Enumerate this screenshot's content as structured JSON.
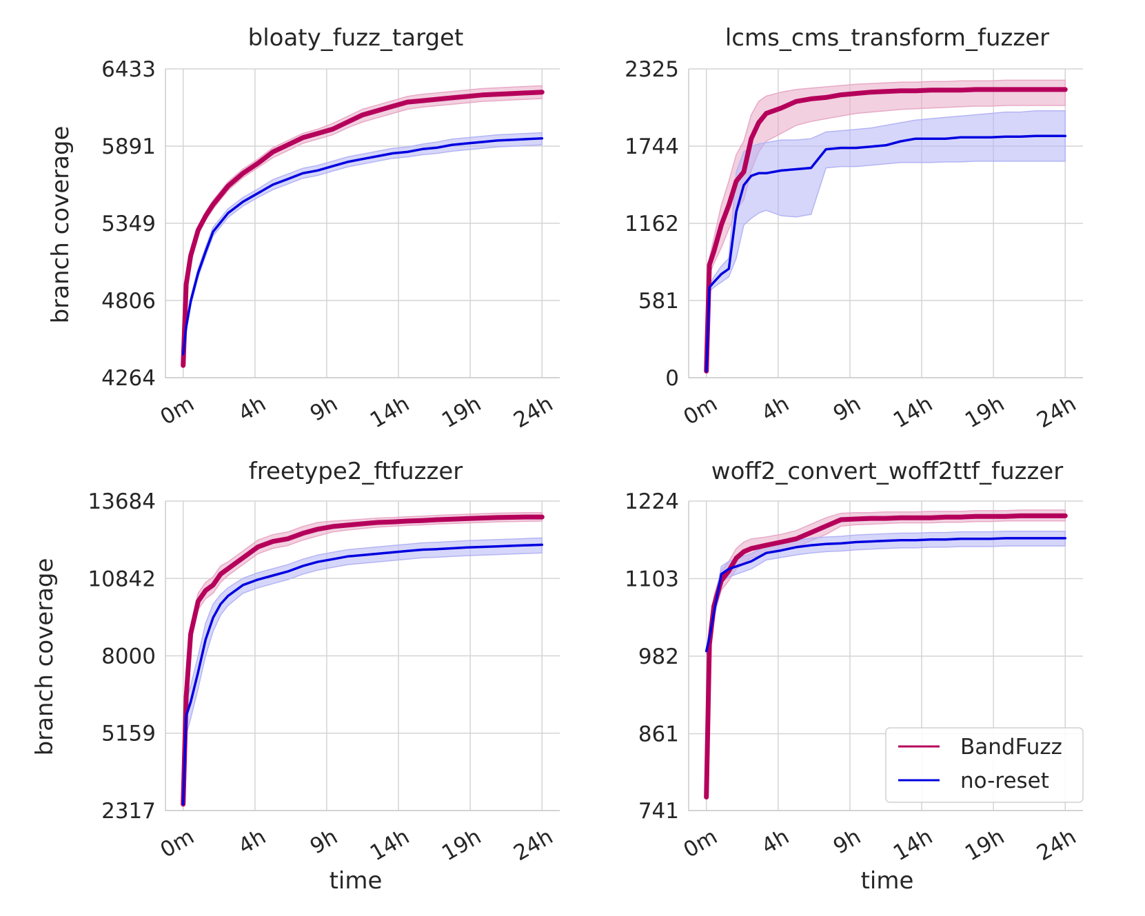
{
  "figure": {
    "ylabel": "branch coverage",
    "xlabel": "time"
  },
  "colors": {
    "BandFuzz": "#b5005b",
    "no-reset": "#0000e0",
    "BandFuzz_band": "#e8a9c6",
    "no-reset_band": "#b4b4f5"
  },
  "legend": {
    "placement": "lower-right of bottom-right panel",
    "entries": [
      "BandFuzz",
      "no-reset"
    ]
  },
  "chart_data": [
    {
      "type": "line",
      "title": "bloaty_fuzz_target",
      "xlabel": "",
      "ylabel": "branch coverage",
      "x_ticks": [
        "0m",
        "4h",
        "9h",
        "14h",
        "19h",
        "24h"
      ],
      "x_tick_hours": [
        0,
        4.8,
        9.6,
        14.4,
        19.2,
        24
      ],
      "y_ticks": [
        "4264",
        "4806",
        "5349",
        "5891",
        "6433"
      ],
      "ylim": [
        4264,
        6433
      ],
      "xlim_hours": [
        0,
        24
      ],
      "grid": true,
      "x_hours": [
        0,
        0.2,
        0.5,
        1,
        1.5,
        2,
        3,
        4,
        5,
        6,
        7,
        8,
        9,
        10,
        11,
        12,
        13,
        14,
        15,
        16,
        17,
        18,
        19,
        20,
        21,
        22,
        23,
        24
      ],
      "series": [
        {
          "name": "BandFuzz",
          "values": [
            4350,
            4920,
            5120,
            5300,
            5400,
            5480,
            5610,
            5700,
            5770,
            5850,
            5900,
            5950,
            5980,
            6010,
            6060,
            6110,
            6140,
            6170,
            6200,
            6210,
            6220,
            6230,
            6240,
            6250,
            6255,
            6260,
            6265,
            6270
          ],
          "lower": [
            4340,
            4890,
            5090,
            5270,
            5370,
            5450,
            5580,
            5670,
            5740,
            5810,
            5860,
            5910,
            5940,
            5970,
            6020,
            6060,
            6090,
            6120,
            6150,
            6165,
            6175,
            6185,
            6195,
            6205,
            6210,
            6215,
            6220,
            6225
          ],
          "upper": [
            4360,
            4950,
            5150,
            5330,
            5430,
            5510,
            5640,
            5730,
            5800,
            5880,
            5930,
            5980,
            6010,
            6050,
            6100,
            6150,
            6180,
            6210,
            6240,
            6255,
            6265,
            6275,
            6285,
            6295,
            6300,
            6305,
            6310,
            6315
          ]
        },
        {
          "name": "no-reset",
          "values": [
            4430,
            4620,
            4800,
            5000,
            5150,
            5290,
            5420,
            5500,
            5560,
            5620,
            5660,
            5700,
            5720,
            5750,
            5780,
            5800,
            5820,
            5840,
            5850,
            5870,
            5880,
            5900,
            5910,
            5920,
            5930,
            5935,
            5940,
            5945
          ],
          "lower": [
            4420,
            4600,
            4770,
            4970,
            5120,
            5260,
            5390,
            5470,
            5530,
            5585,
            5625,
            5665,
            5685,
            5715,
            5745,
            5765,
            5785,
            5805,
            5815,
            5830,
            5840,
            5855,
            5865,
            5875,
            5885,
            5890,
            5895,
            5900
          ],
          "upper": [
            4440,
            4640,
            4830,
            5030,
            5180,
            5320,
            5450,
            5530,
            5590,
            5655,
            5695,
            5735,
            5755,
            5785,
            5815,
            5835,
            5855,
            5875,
            5885,
            5905,
            5920,
            5940,
            5950,
            5960,
            5970,
            5975,
            5980,
            5985
          ]
        }
      ]
    },
    {
      "type": "line",
      "title": "lcms_cms_transform_fuzzer",
      "xlabel": "",
      "ylabel": "",
      "x_ticks": [
        "0m",
        "4h",
        "9h",
        "14h",
        "19h",
        "24h"
      ],
      "x_tick_hours": [
        0,
        4.8,
        9.6,
        14.4,
        19.2,
        24
      ],
      "y_ticks": [
        "0",
        "581",
        "1162",
        "1744",
        "2325"
      ],
      "ylim": [
        0,
        2325
      ],
      "xlim_hours": [
        0,
        24
      ],
      "grid": true,
      "x_hours": [
        0,
        0.2,
        0.5,
        1,
        1.5,
        2,
        2.5,
        3,
        3.5,
        4,
        5,
        6,
        7,
        8,
        9,
        10,
        11,
        12,
        13,
        14,
        15,
        16,
        17,
        18,
        19,
        20,
        21,
        22,
        23,
        24
      ],
      "series": [
        {
          "name": "BandFuzz",
          "values": [
            50,
            850,
            950,
            1150,
            1300,
            1480,
            1550,
            1800,
            1920,
            1990,
            2030,
            2080,
            2100,
            2110,
            2130,
            2140,
            2150,
            2155,
            2160,
            2160,
            2165,
            2165,
            2165,
            2170,
            2170,
            2170,
            2170,
            2170,
            2170,
            2170
          ],
          "lower": [
            40,
            780,
            860,
            980,
            1120,
            1260,
            1340,
            1560,
            1700,
            1780,
            1840,
            1900,
            1930,
            1950,
            1970,
            1990,
            2000,
            2010,
            2020,
            2025,
            2030,
            2035,
            2040,
            2045,
            2045,
            2050,
            2050,
            2050,
            2050,
            2050
          ],
          "upper": [
            60,
            900,
            1050,
            1300,
            1480,
            1680,
            1780,
            1980,
            2080,
            2120,
            2150,
            2170,
            2180,
            2190,
            2200,
            2210,
            2215,
            2220,
            2225,
            2225,
            2230,
            2230,
            2235,
            2235,
            2235,
            2240,
            2240,
            2240,
            2240,
            2240
          ]
        },
        {
          "name": "no-reset",
          "values": [
            50,
            680,
            720,
            780,
            820,
            1250,
            1450,
            1520,
            1540,
            1540,
            1560,
            1570,
            1580,
            1720,
            1730,
            1730,
            1740,
            1750,
            1780,
            1800,
            1800,
            1800,
            1810,
            1810,
            1810,
            1815,
            1815,
            1820,
            1820,
            1820
          ],
          "lower": [
            40,
            650,
            680,
            720,
            760,
            900,
            1150,
            1200,
            1240,
            1260,
            1220,
            1210,
            1230,
            1580,
            1590,
            1590,
            1600,
            1610,
            1620,
            1620,
            1620,
            1625,
            1625,
            1630,
            1630,
            1630,
            1630,
            1630,
            1630,
            1630
          ],
          "upper": [
            60,
            700,
            760,
            840,
            900,
            1550,
            1700,
            1740,
            1760,
            1770,
            1790,
            1790,
            1800,
            1850,
            1860,
            1870,
            1880,
            1900,
            1920,
            1940,
            1950,
            1960,
            1970,
            1980,
            1990,
            2000,
            2000,
            2010,
            2010,
            2010
          ]
        }
      ]
    },
    {
      "type": "line",
      "title": "freetype2_ftfuzzer",
      "xlabel": "time",
      "ylabel": "branch coverage",
      "x_ticks": [
        "0m",
        "4h",
        "9h",
        "14h",
        "19h",
        "24h"
      ],
      "x_tick_hours": [
        0,
        4.8,
        9.6,
        14.4,
        19.2,
        24
      ],
      "y_ticks": [
        "2317",
        "5159",
        "8000",
        "10842",
        "13684"
      ],
      "ylim": [
        2317,
        13684
      ],
      "xlim_hours": [
        0,
        24
      ],
      "grid": true,
      "x_hours": [
        0,
        0.2,
        0.5,
        1,
        1.5,
        2,
        2.5,
        3,
        4,
        5,
        6,
        7,
        8,
        9,
        10,
        11,
        12,
        13,
        14,
        15,
        16,
        17,
        18,
        19,
        20,
        21,
        22,
        23,
        24
      ],
      "series": [
        {
          "name": "BandFuzz",
          "values": [
            2550,
            6500,
            8800,
            10000,
            10400,
            10600,
            11000,
            11200,
            11600,
            12000,
            12200,
            12300,
            12500,
            12650,
            12750,
            12800,
            12850,
            12900,
            12920,
            12950,
            12970,
            13000,
            13020,
            13040,
            13060,
            13080,
            13090,
            13100,
            13100
          ],
          "lower": [
            2500,
            6200,
            8500,
            9700,
            10100,
            10300,
            10700,
            10950,
            11350,
            11750,
            11950,
            12050,
            12250,
            12400,
            12550,
            12620,
            12680,
            12730,
            12760,
            12790,
            12810,
            12840,
            12860,
            12880,
            12900,
            12920,
            12930,
            12940,
            12950
          ],
          "upper": [
            2600,
            6800,
            9100,
            10300,
            10700,
            10900,
            11300,
            11450,
            11850,
            12250,
            12450,
            12550,
            12750,
            12900,
            12950,
            12980,
            13020,
            13060,
            13080,
            13110,
            13130,
            13160,
            13180,
            13200,
            13220,
            13240,
            13250,
            13260,
            13260
          ]
        },
        {
          "name": "no-reset",
          "values": [
            2550,
            5800,
            6300,
            7400,
            8600,
            9400,
            9900,
            10200,
            10600,
            10800,
            10950,
            11100,
            11300,
            11450,
            11550,
            11650,
            11700,
            11750,
            11800,
            11850,
            11900,
            11920,
            11950,
            11980,
            12000,
            12020,
            12040,
            12060,
            12080
          ],
          "lower": [
            2500,
            5100,
            5700,
            6800,
            8000,
            8900,
            9500,
            9850,
            10300,
            10500,
            10650,
            10800,
            11000,
            11150,
            11250,
            11350,
            11400,
            11450,
            11500,
            11550,
            11600,
            11620,
            11650,
            11680,
            11700,
            11720,
            11740,
            11760,
            11780
          ],
          "upper": [
            2600,
            6300,
            6900,
            8000,
            9200,
            9900,
            10250,
            10500,
            10850,
            11050,
            11200,
            11350,
            11550,
            11700,
            11800,
            11900,
            11950,
            12000,
            12050,
            12100,
            12150,
            12170,
            12200,
            12230,
            12250,
            12270,
            12290,
            12310,
            12330
          ]
        }
      ]
    },
    {
      "type": "line",
      "title": "woff2_convert_woff2ttf_fuzzer",
      "xlabel": "time",
      "ylabel": "",
      "x_ticks": [
        "0m",
        "4h",
        "9h",
        "14h",
        "19h",
        "24h"
      ],
      "x_tick_hours": [
        0,
        4.8,
        9.6,
        14.4,
        19.2,
        24
      ],
      "y_ticks": [
        "741",
        "861",
        "982",
        "1103",
        "1224"
      ],
      "ylim": [
        741,
        1224
      ],
      "xlim_hours": [
        0,
        24
      ],
      "grid": true,
      "x_hours": [
        0,
        0.2,
        0.5,
        1,
        1.5,
        2,
        2.5,
        3,
        4,
        5,
        6,
        7,
        8,
        9,
        10,
        11,
        12,
        13,
        14,
        15,
        16,
        17,
        18,
        19,
        20,
        21,
        22,
        23,
        24
      ],
      "series": [
        {
          "name": "BandFuzz",
          "values": [
            762,
            1000,
            1060,
            1100,
            1115,
            1135,
            1145,
            1150,
            1155,
            1160,
            1165,
            1175,
            1185,
            1195,
            1196,
            1197,
            1197,
            1198,
            1198,
            1198,
            1199,
            1199,
            1200,
            1200,
            1200,
            1201,
            1201,
            1201,
            1201
          ],
          "lower": [
            760,
            990,
            1045,
            1085,
            1100,
            1118,
            1128,
            1135,
            1142,
            1147,
            1152,
            1162,
            1172,
            1185,
            1187,
            1188,
            1189,
            1190,
            1190,
            1190,
            1191,
            1191,
            1192,
            1192,
            1193,
            1193,
            1193,
            1193,
            1193
          ],
          "upper": [
            765,
            1010,
            1075,
            1115,
            1130,
            1150,
            1160,
            1165,
            1168,
            1172,
            1178,
            1188,
            1198,
            1205,
            1206,
            1206,
            1207,
            1207,
            1207,
            1208,
            1208,
            1208,
            1209,
            1209,
            1209,
            1210,
            1210,
            1210,
            1210
          ]
        },
        {
          "name": "no-reset",
          "values": [
            990,
            1010,
            1050,
            1110,
            1118,
            1122,
            1126,
            1130,
            1143,
            1147,
            1152,
            1155,
            1157,
            1158,
            1160,
            1161,
            1162,
            1163,
            1163,
            1164,
            1164,
            1165,
            1165,
            1165,
            1166,
            1166,
            1166,
            1166,
            1166
          ],
          "lower": [
            985,
            1000,
            1038,
            1098,
            1105,
            1110,
            1114,
            1118,
            1132,
            1136,
            1140,
            1143,
            1145,
            1146,
            1148,
            1149,
            1150,
            1151,
            1151,
            1152,
            1152,
            1153,
            1153,
            1153,
            1154,
            1154,
            1154,
            1154,
            1154
          ],
          "upper": [
            995,
            1020,
            1062,
            1122,
            1130,
            1134,
            1138,
            1142,
            1154,
            1158,
            1163,
            1166,
            1168,
            1169,
            1171,
            1172,
            1173,
            1174,
            1174,
            1175,
            1175,
            1176,
            1176,
            1176,
            1177,
            1177,
            1177,
            1177,
            1177
          ]
        }
      ]
    }
  ]
}
